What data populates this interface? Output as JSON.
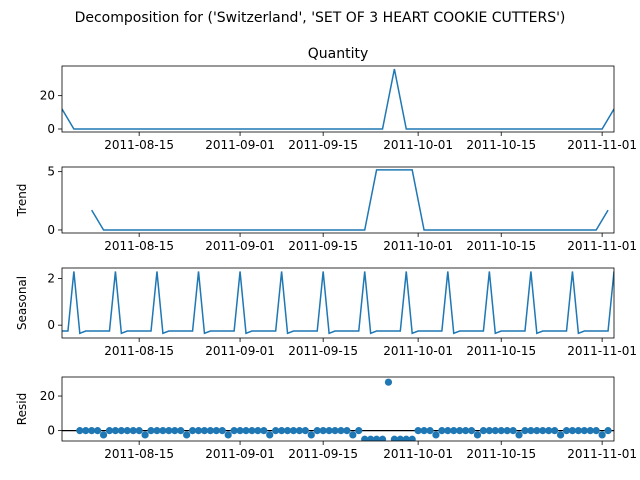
{
  "suptitle": "Decomposition for ('Switzerland', 'SET OF 3 HEART COOKIE CUTTERS')",
  "colors": {
    "line": "#1f77b4",
    "axis": "#000000",
    "background": "#ffffff"
  },
  "x_ticks": [
    "2011-08-15",
    "2011-09-01",
    "2011-09-15",
    "2011-10-01",
    "2011-10-15",
    "2011-11-01"
  ],
  "chart_data": [
    {
      "type": "line",
      "title": "Quantity",
      "ylabel": "",
      "x_range": [
        "2011-08-02",
        "2011-11-03"
      ],
      "ylim": [
        -1.8,
        37.8
      ],
      "yticks": [
        0,
        20
      ],
      "zero_line": false,
      "series": [
        {
          "x": [
            "2011-08-02",
            "2011-08-04",
            "2011-09-25",
            "2011-09-27",
            "2011-09-29",
            "2011-11-01",
            "2011-11-03"
          ],
          "y": [
            12,
            0,
            0,
            36,
            0,
            0,
            12
          ]
        }
      ]
    },
    {
      "type": "line",
      "title": "",
      "ylabel": "Trend",
      "x_range": [
        "2011-08-02",
        "2011-11-03"
      ],
      "ylim": [
        -0.26,
        5.4
      ],
      "yticks": [
        0,
        5
      ],
      "zero_line": false,
      "series": [
        {
          "x": [
            "2011-08-07",
            "2011-08-09",
            "2011-09-22",
            "2011-09-24",
            "2011-09-30",
            "2011-10-02",
            "2011-10-31",
            "2011-11-02"
          ],
          "y": [
            1.7,
            0,
            0,
            5.15,
            5.15,
            0,
            0,
            1.7
          ]
        }
      ]
    },
    {
      "type": "line",
      "title": "",
      "ylabel": "Seasonal",
      "x_range": [
        "2011-08-02",
        "2011-11-03"
      ],
      "ylim": [
        -0.55,
        2.45
      ],
      "yticks": [
        0,
        2
      ],
      "zero_line": false,
      "series": [
        {
          "pattern": "weekly",
          "first_peak": "2011-08-04",
          "period_days": 7,
          "values": {
            "peak": 2.3,
            "trough": -0.35,
            "base": -0.25
          }
        }
      ]
    },
    {
      "type": "scatter",
      "title": "",
      "ylabel": "Resid",
      "x_range": [
        "2011-08-02",
        "2011-11-03"
      ],
      "ylim": [
        -6,
        31
      ],
      "yticks": [
        0,
        20
      ],
      "zero_line": true,
      "series": [
        {
          "x_start": "2011-08-05",
          "x_end": "2011-11-02",
          "base": 0,
          "weekly_dip_start": "2011-08-09",
          "weekly_dip": -2.5,
          "cluster": {
            "from": "2011-09-22",
            "to": "2011-09-30",
            "value": -5
          },
          "outlier": {
            "x": "2011-09-26",
            "y": 28
          }
        }
      ]
    }
  ]
}
